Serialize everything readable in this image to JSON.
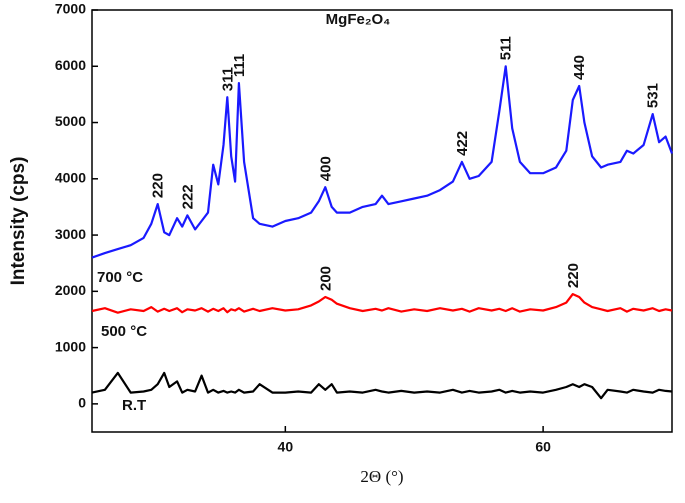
{
  "chart_data": {
    "type": "line",
    "title": "MgFe₂O₄",
    "x_label": "2Θ (°)",
    "y_label": "Intensity (cps)",
    "xlim": [
      25,
      70
    ],
    "xticks": [
      40,
      60
    ],
    "ylim": [
      -500,
      7000
    ],
    "yticks": [
      0,
      1000,
      2000,
      3000,
      4000,
      5000,
      6000,
      7000
    ],
    "x": [
      25,
      26,
      27,
      28,
      29,
      29.6,
      30.1,
      30.6,
      31,
      31.6,
      32,
      32.4,
      33,
      33.5,
      34,
      34.4,
      34.8,
      35.2,
      35.5,
      35.8,
      36.1,
      36.4,
      36.8,
      37.5,
      38,
      39,
      40,
      41,
      42,
      42.6,
      43.1,
      43.6,
      44,
      45,
      46,
      47,
      47.5,
      48,
      49,
      50,
      51,
      52,
      53,
      53.7,
      54.3,
      55,
      56,
      56.6,
      57.1,
      57.6,
      58.2,
      59,
      60,
      61,
      61.8,
      62.3,
      62.8,
      63.2,
      63.8,
      64.5,
      65,
      66,
      66.5,
      67,
      67.8,
      68.5,
      69,
      69.5,
      70
    ],
    "series": [
      {
        "name": "700 °C",
        "color": "#1a1aff",
        "values": [
          2600,
          2680,
          2750,
          2820,
          2950,
          3200,
          3550,
          3050,
          3000,
          3300,
          3150,
          3350,
          3100,
          3250,
          3400,
          4250,
          3900,
          4600,
          5450,
          4400,
          3950,
          5700,
          4300,
          3300,
          3200,
          3150,
          3250,
          3300,
          3400,
          3600,
          3850,
          3500,
          3400,
          3400,
          3500,
          3550,
          3700,
          3550,
          3600,
          3650,
          3700,
          3800,
          3950,
          4300,
          4000,
          4050,
          4300,
          5200,
          6000,
          4900,
          4300,
          4100,
          4100,
          4200,
          4500,
          5400,
          5650,
          5000,
          4400,
          4200,
          4250,
          4300,
          4500,
          4450,
          4600,
          5150,
          4650,
          4750,
          4450
        ]
      },
      {
        "name": "500 °C",
        "color": "#ff0000",
        "values": [
          1650,
          1700,
          1620,
          1680,
          1650,
          1720,
          1640,
          1690,
          1650,
          1700,
          1630,
          1680,
          1660,
          1700,
          1640,
          1690,
          1650,
          1700,
          1630,
          1680,
          1660,
          1700,
          1640,
          1690,
          1650,
          1700,
          1660,
          1680,
          1750,
          1820,
          1900,
          1850,
          1780,
          1700,
          1650,
          1690,
          1660,
          1700,
          1640,
          1680,
          1650,
          1700,
          1660,
          1690,
          1640,
          1700,
          1660,
          1690,
          1650,
          1700,
          1640,
          1680,
          1660,
          1720,
          1800,
          1950,
          1900,
          1800,
          1720,
          1680,
          1650,
          1700,
          1640,
          1690,
          1660,
          1700,
          1650,
          1680,
          1660
        ]
      },
      {
        "name": "R.T",
        "color": "#000000",
        "values": [
          200,
          250,
          550,
          200,
          220,
          250,
          350,
          550,
          300,
          400,
          200,
          250,
          220,
          500,
          200,
          250,
          200,
          230,
          200,
          220,
          200,
          250,
          200,
          220,
          350,
          200,
          200,
          220,
          200,
          350,
          250,
          350,
          200,
          220,
          200,
          250,
          220,
          200,
          230,
          200,
          220,
          200,
          250,
          200,
          230,
          200,
          220,
          250,
          200,
          230,
          200,
          220,
          200,
          250,
          300,
          350,
          300,
          350,
          300,
          100,
          250,
          220,
          200,
          250,
          220,
          200,
          250,
          230,
          220
        ]
      }
    ],
    "annotations": [
      {
        "text": "220",
        "series": 0,
        "x": 30.1
      },
      {
        "text": "222",
        "series": 0,
        "x": 32.4
      },
      {
        "text": "311",
        "series": 0,
        "x": 35.5
      },
      {
        "text": "111",
        "series": 0,
        "x": 36.4
      },
      {
        "text": "400",
        "series": 0,
        "x": 43.1
      },
      {
        "text": "422",
        "series": 0,
        "x": 53.7
      },
      {
        "text": "511",
        "series": 0,
        "x": 57.1
      },
      {
        "text": "440",
        "series": 0,
        "x": 62.8
      },
      {
        "text": "531",
        "series": 0,
        "x": 68.5
      },
      {
        "text": "200",
        "series": 1,
        "x": 43.1
      },
      {
        "text": "220",
        "series": 1,
        "x": 62.3
      }
    ]
  }
}
